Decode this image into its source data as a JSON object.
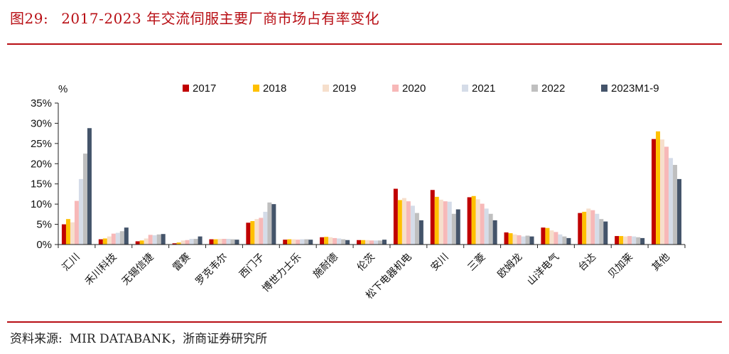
{
  "header": {
    "figure_number": "图29:",
    "title": "2017-2023 年交流伺服主要厂商市场占有率变化"
  },
  "footer": {
    "source_label": "资料来源:",
    "source_text": "MIR DATABANK，浙商证券研究所"
  },
  "chart_data": {
    "type": "bar",
    "ylabel": "%",
    "ylim": [
      0,
      35
    ],
    "yticks": [
      0,
      5,
      10,
      15,
      20,
      25,
      30,
      35
    ],
    "ytick_labels": [
      "0%",
      "5%",
      "10%",
      "15%",
      "20%",
      "25%",
      "30%",
      "35%"
    ],
    "grid": false,
    "legend_position": "top",
    "categories": [
      "汇川",
      "禾川科技",
      "无锡信捷",
      "雷赛",
      "罗克韦尔",
      "西门子",
      "博世力士乐",
      "施耐德",
      "伦茨",
      "松下电器机电",
      "安川",
      "三菱",
      "欧姆龙",
      "山洋电气",
      "台达",
      "贝加莱",
      "其他"
    ],
    "series": [
      {
        "name": "2017",
        "color": "#c00000",
        "values": [
          5.0,
          1.3,
          0.8,
          0.3,
          1.3,
          5.4,
          1.2,
          1.8,
          1.1,
          13.8,
          13.5,
          11.7,
          3.0,
          4.2,
          7.8,
          2.1,
          26.1
        ]
      },
      {
        "name": "2018",
        "color": "#ffc000",
        "values": [
          6.3,
          1.5,
          1.0,
          0.5,
          1.3,
          5.8,
          1.3,
          1.9,
          1.1,
          11.0,
          11.8,
          12.0,
          2.8,
          4.1,
          8.1,
          2.1,
          28.0
        ]
      },
      {
        "name": "2019",
        "color": "#f6dfcc",
        "values": [
          5.5,
          2.0,
          1.5,
          1.0,
          1.4,
          6.3,
          1.3,
          1.8,
          1.1,
          11.5,
          11.1,
          11.2,
          2.5,
          3.5,
          8.9,
          2.0,
          26.0
        ]
      },
      {
        "name": "2020",
        "color": "#f7b8b8",
        "values": [
          10.8,
          2.7,
          2.4,
          1.1,
          1.4,
          6.6,
          1.2,
          1.6,
          1.0,
          10.7,
          10.7,
          10.1,
          2.3,
          3.1,
          8.5,
          2.1,
          24.2
        ]
      },
      {
        "name": "2021",
        "color": "#d5dce8",
        "values": [
          16.2,
          2.9,
          2.3,
          1.4,
          1.4,
          8.1,
          1.3,
          1.5,
          1.0,
          9.6,
          10.6,
          8.9,
          2.0,
          2.5,
          7.6,
          2.0,
          21.4
        ]
      },
      {
        "name": "2022",
        "color": "#bfbfbf",
        "values": [
          22.5,
          3.3,
          2.5,
          1.4,
          1.3,
          10.4,
          1.3,
          1.3,
          1.0,
          7.8,
          7.6,
          7.6,
          2.2,
          2.0,
          6.3,
          1.8,
          19.7
        ]
      },
      {
        "name": "2023M1-9",
        "color": "#44546a",
        "values": [
          28.8,
          4.2,
          2.6,
          2.0,
          1.2,
          10.0,
          1.2,
          1.1,
          1.2,
          6.0,
          8.7,
          6.0,
          2.0,
          1.6,
          5.7,
          1.6,
          16.2
        ]
      }
    ]
  }
}
